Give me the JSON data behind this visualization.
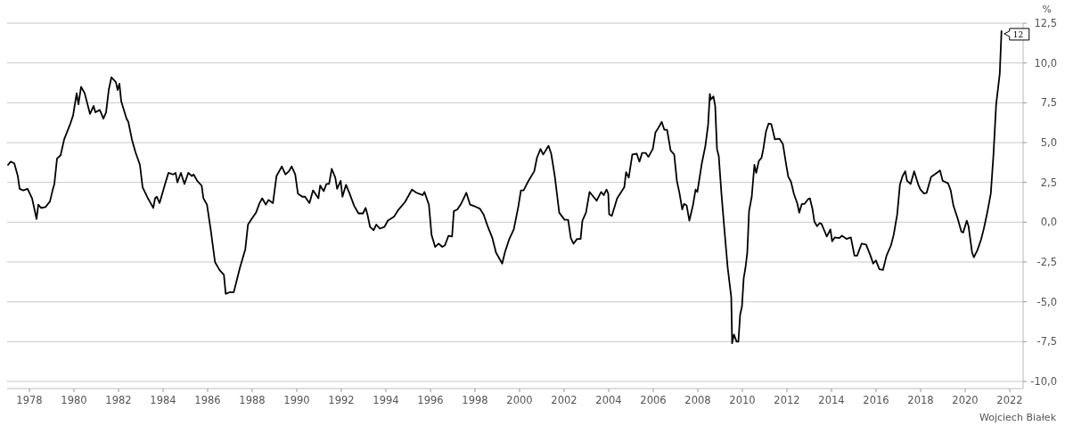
{
  "chart_data": {
    "type": "line",
    "ylabel": "%",
    "xlim": [
      1977,
      2022.6
    ],
    "ylim": [
      -10,
      12.5
    ],
    "xticks": [
      1978,
      1980,
      1982,
      1984,
      1986,
      1988,
      1990,
      1992,
      1994,
      1996,
      1998,
      2000,
      2002,
      2004,
      2006,
      2008,
      2010,
      2012,
      2014,
      2016,
      2018,
      2020,
      2022
    ],
    "yticks": [
      {
        "value": -10,
        "label": "-10,0"
      },
      {
        "value": -7.5,
        "label": "-7,5"
      },
      {
        "value": -5,
        "label": "-5,0"
      },
      {
        "value": -2.5,
        "label": "-2,5"
      },
      {
        "value": 0,
        "label": "0,0"
      },
      {
        "value": 2.5,
        "label": "2,5"
      },
      {
        "value": 5,
        "label": "5,0"
      },
      {
        "value": 7.5,
        "label": "7,5"
      },
      {
        "value": 10,
        "label": "10,0"
      },
      {
        "value": 12.5,
        "label": "12,5"
      }
    ],
    "grid": "y",
    "annotations": [
      {
        "text": "12",
        "x": 2021.63,
        "y": 12
      },
      "Wojciech Białek"
    ],
    "series": [
      {
        "color": "#000000",
        "x": [
          1977.04,
          1977.16,
          1977.32,
          1977.48,
          1977.56,
          1977.72,
          1977.92,
          1978.12,
          1978.32,
          1978.4,
          1978.52,
          1978.72,
          1978.92,
          1979.04,
          1979.12,
          1979.24,
          1979.4,
          1979.56,
          1979.84,
          1979.96,
          1980.12,
          1980.2,
          1980.32,
          1980.48,
          1980.72,
          1980.88,
          1980.96,
          1981.16,
          1981.32,
          1981.44,
          1981.56,
          1981.68,
          1981.88,
          1981.96,
          1982.04,
          1982.12,
          1982.36,
          1982.44,
          1982.6,
          1982.76,
          1982.96,
          1983.08,
          1983.32,
          1983.44,
          1983.56,
          1983.64,
          1983.72,
          1983.84,
          1984.08,
          1984.24,
          1984.44,
          1984.56,
          1984.64,
          1984.8,
          1984.96,
          1985.13,
          1985.29,
          1985.37,
          1985.53,
          1985.73,
          1985.81,
          1985.97,
          1986.13,
          1986.33,
          1986.53,
          1986.73,
          1986.81,
          1986.97,
          1987.17,
          1987.45,
          1987.69,
          1987.81,
          1987.97,
          1988.17,
          1988.33,
          1988.45,
          1988.61,
          1988.73,
          1988.93,
          1989.09,
          1989.33,
          1989.49,
          1989.65,
          1989.77,
          1989.93,
          1990.05,
          1990.25,
          1990.37,
          1990.57,
          1990.73,
          1990.97,
          1991.05,
          1991.21,
          1991.33,
          1991.45,
          1991.57,
          1991.73,
          1991.81,
          1991.97,
          1992.05,
          1992.21,
          1992.37,
          1992.57,
          1992.77,
          1992.97,
          1993.09,
          1993.17,
          1993.29,
          1993.45,
          1993.57,
          1993.73,
          1993.93,
          1994.09,
          1994.37,
          1994.57,
          1994.85,
          1995.17,
          1995.37,
          1995.65,
          1995.73,
          1995.93,
          1996.05,
          1996.21,
          1996.37,
          1996.53,
          1996.65,
          1996.81,
          1996.97,
          1997.05,
          1997.21,
          1997.37,
          1997.61,
          1997.78,
          1997.98,
          1998.22,
          1998.38,
          1998.58,
          1998.78,
          1998.94,
          1999.22,
          1999.34,
          1999.54,
          1999.74,
          1999.94,
          2000.06,
          2000.18,
          2000.38,
          2000.66,
          2000.78,
          2000.94,
          2001.06,
          2001.3,
          2001.42,
          2001.58,
          2001.78,
          2002.02,
          2002.18,
          2002.3,
          2002.42,
          2002.58,
          2002.74,
          2002.82,
          2002.98,
          2003.14,
          2003.26,
          2003.46,
          2003.66,
          2003.78,
          2003.9,
          2003.98,
          2004.02,
          2004.14,
          2004.38,
          2004.7,
          2004.78,
          2004.9,
          2005.06,
          2005.26,
          2005.38,
          2005.5,
          2005.66,
          2005.78,
          2005.98,
          2006.1,
          2006.22,
          2006.38,
          2006.5,
          2006.62,
          2006.78,
          2006.94,
          2007.06,
          2007.18,
          2007.3,
          2007.38,
          2007.5,
          2007.62,
          2007.78,
          2007.9,
          2007.98,
          2008.18,
          2008.34,
          2008.46,
          2008.54,
          2008.58,
          2008.7,
          2008.78,
          2008.86,
          2008.94,
          2009.06,
          2009.18,
          2009.34,
          2009.5,
          2009.54,
          2009.62,
          2009.74,
          2009.82,
          2009.9,
          2009.98,
          2010.06,
          2010.14,
          2010.22,
          2010.3,
          2010.42,
          2010.54,
          2010.62,
          2010.74,
          2010.86,
          2010.94,
          2011.06,
          2011.18,
          2011.3,
          2011.46,
          2011.66,
          2011.82,
          2011.98,
          2012.06,
          2012.18,
          2012.31,
          2012.47,
          2012.55,
          2012.67,
          2012.79,
          2012.95,
          2013.03,
          2013.15,
          2013.23,
          2013.35,
          2013.47,
          2013.55,
          2013.67,
          2013.79,
          2013.95,
          2014.03,
          2014.15,
          2014.35,
          2014.47,
          2014.67,
          2014.87,
          2015.03,
          2015.15,
          2015.35,
          2015.55,
          2015.75,
          2015.87,
          2015.99,
          2016.15,
          2016.31,
          2016.47,
          2016.67,
          2016.79,
          2016.95,
          2017.07,
          2017.19,
          2017.31,
          2017.39,
          2017.55,
          2017.71,
          2017.91,
          2017.99,
          2018.15,
          2018.27,
          2018.47,
          2018.63,
          2018.87,
          2018.99,
          2019.23,
          2019.35,
          2019.47,
          2019.67,
          2019.83,
          2019.91,
          2020.07,
          2020.15,
          2020.31,
          2020.39,
          2020.55,
          2020.71,
          2020.83,
          2020.99,
          2021.15,
          2021.27,
          2021.39,
          2021.55,
          2021.63
        ],
        "values": [
          3.6,
          3.8,
          3.7,
          2.9,
          2.1,
          2.0,
          2.1,
          1.5,
          0.2,
          1.1,
          0.9,
          0.95,
          1.3,
          2.0,
          2.4,
          4.0,
          4.2,
          5.2,
          6.2,
          6.7,
          8.1,
          7.4,
          8.5,
          8.1,
          6.8,
          7.3,
          6.9,
          7.05,
          6.5,
          6.9,
          8.3,
          9.1,
          8.8,
          8.3,
          8.7,
          7.6,
          6.5,
          6.3,
          5.2,
          4.4,
          3.6,
          2.2,
          1.5,
          1.2,
          0.9,
          1.5,
          1.6,
          1.2,
          2.35,
          3.1,
          3.0,
          3.1,
          2.5,
          3.1,
          2.4,
          3.1,
          2.9,
          3.0,
          2.6,
          2.3,
          1.5,
          1.1,
          -0.4,
          -2.5,
          -3.0,
          -3.3,
          -4.5,
          -4.4,
          -4.4,
          -2.85,
          -1.7,
          -0.15,
          0.2,
          0.6,
          1.2,
          1.5,
          1.1,
          1.4,
          1.2,
          2.9,
          3.5,
          3.0,
          3.2,
          3.5,
          3.0,
          1.8,
          1.6,
          1.6,
          1.2,
          2.0,
          1.5,
          2.3,
          1.95,
          2.4,
          2.4,
          3.35,
          2.8,
          2.1,
          2.6,
          1.6,
          2.35,
          1.8,
          1.05,
          0.55,
          0.55,
          0.9,
          0.5,
          -0.3,
          -0.5,
          -0.15,
          -0.4,
          -0.3,
          0.1,
          0.35,
          0.8,
          1.25,
          2.05,
          1.85,
          1.7,
          1.9,
          1.1,
          -0.8,
          -1.55,
          -1.35,
          -1.55,
          -1.45,
          -0.85,
          -0.9,
          0.7,
          0.8,
          1.15,
          1.85,
          1.1,
          1.0,
          0.85,
          0.5,
          -0.3,
          -1.0,
          -1.9,
          -2.6,
          -1.9,
          -1.05,
          -0.45,
          0.95,
          2.0,
          2.0,
          2.55,
          3.2,
          4.05,
          4.6,
          4.25,
          4.8,
          4.3,
          2.9,
          0.6,
          0.15,
          0.15,
          -1.0,
          -1.35,
          -1.05,
          -1.05,
          0.1,
          0.6,
          1.9,
          1.7,
          1.35,
          1.9,
          1.7,
          2.05,
          1.8,
          0.5,
          0.4,
          1.5,
          2.2,
          3.15,
          2.8,
          4.25,
          4.3,
          3.8,
          4.35,
          4.35,
          4.1,
          4.6,
          5.65,
          5.9,
          6.3,
          5.8,
          5.8,
          4.5,
          4.25,
          2.6,
          1.8,
          0.8,
          1.15,
          1.05,
          0.1,
          1.05,
          2.05,
          1.9,
          3.7,
          4.8,
          6.1,
          8.05,
          7.7,
          7.9,
          7.3,
          4.6,
          4.15,
          1.8,
          -0.25,
          -2.85,
          -4.7,
          -7.6,
          -7.05,
          -7.5,
          -7.5,
          -5.8,
          -5.3,
          -3.5,
          -2.85,
          -1.9,
          0.7,
          1.6,
          3.6,
          3.1,
          3.85,
          4.05,
          4.6,
          5.7,
          6.2,
          6.15,
          5.2,
          5.25,
          4.9,
          3.5,
          2.85,
          2.55,
          1.8,
          1.15,
          0.6,
          1.15,
          1.15,
          1.45,
          1.5,
          0.8,
          0.05,
          -0.25,
          -0.05,
          -0.1,
          -0.5,
          -0.9,
          -0.45,
          -1.2,
          -0.95,
          -1.0,
          -0.85,
          -1.05,
          -0.95,
          -2.1,
          -2.1,
          -1.35,
          -1.4,
          -2.1,
          -2.6,
          -2.4,
          -2.95,
          -3.0,
          -2.1,
          -1.45,
          -0.8,
          0.5,
          2.35,
          2.9,
          3.2,
          2.6,
          2.4,
          3.2,
          2.3,
          2.05,
          1.8,
          1.85,
          2.85,
          3.0,
          3.25,
          2.6,
          2.45,
          2.0,
          1.05,
          0.2,
          -0.6,
          -0.65,
          0.1,
          -0.25,
          -1.9,
          -2.2,
          -1.75,
          -1.1,
          -0.45,
          0.6,
          1.8,
          4.25,
          7.4,
          9.3,
          12.0
        ]
      }
    ]
  }
}
